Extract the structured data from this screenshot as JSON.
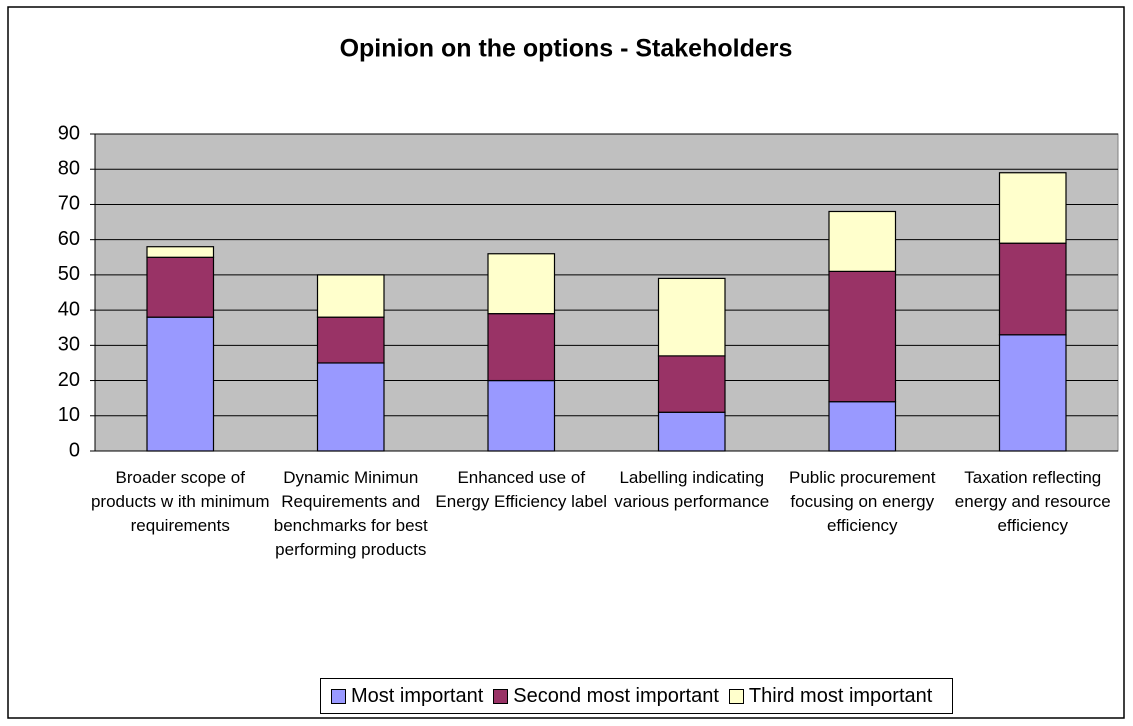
{
  "chart_data": {
    "type": "stacked-bar",
    "title": "Opinion on the options - Stakeholders",
    "categories": [
      "Broader scope of products w ith minimum requirements",
      "Dynamic Minimun Requirements and benchmarks for best performing products",
      "Enhanced use of Energy Efficiency label",
      "Labelling indicating various performance",
      "Public procurement focusing on energy efficiency",
      "Taxation reflecting energy and resource efficiency"
    ],
    "series": [
      {
        "name": "Most important",
        "color": "#9999ff",
        "values": [
          38,
          25,
          20,
          11,
          14,
          33
        ]
      },
      {
        "name": "Second most important",
        "color": "#993366",
        "values": [
          17,
          13,
          19,
          16,
          37,
          26
        ]
      },
      {
        "name": "Third most important",
        "color": "#ffffcc",
        "values": [
          3,
          12,
          17,
          22,
          17,
          20
        ]
      }
    ],
    "ylim": [
      0,
      90
    ],
    "yticks": [
      0,
      10,
      20,
      30,
      40,
      50,
      60,
      70,
      80,
      90
    ],
    "grid": true,
    "plot_background": "#c0c0c0",
    "legend": "bottom"
  }
}
